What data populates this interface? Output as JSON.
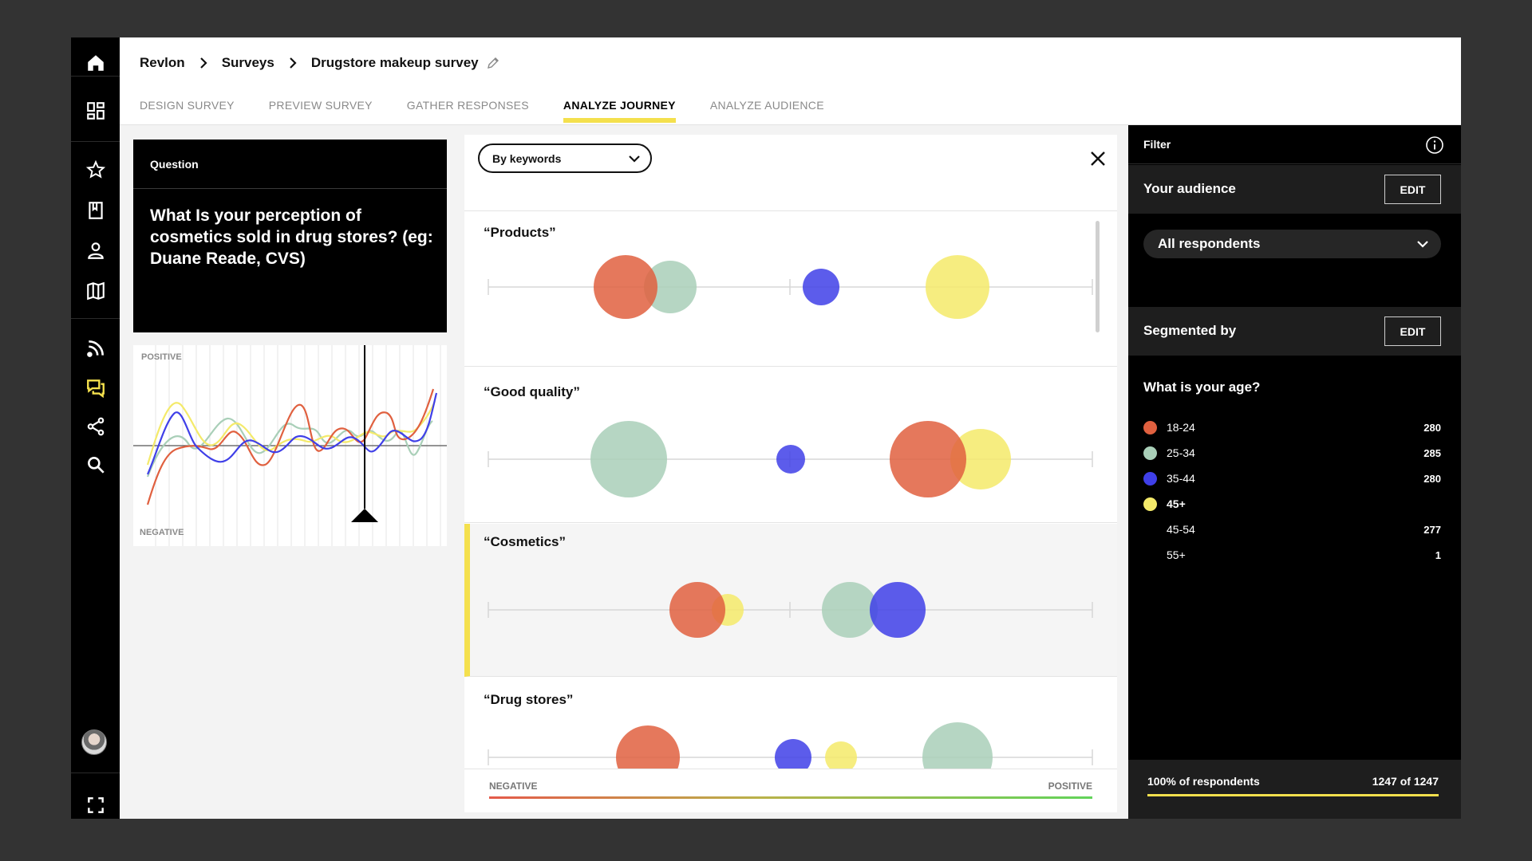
{
  "breadcrumb": {
    "items": [
      "Revlon",
      "Surveys",
      "Drugstore makeup survey"
    ]
  },
  "tabs": [
    "DESIGN SURVEY",
    "PREVIEW SURVEY",
    "GATHER RESPONSES",
    "ANALYZE JOURNEY",
    "ANALYZE AUDIENCE"
  ],
  "active_tab": "ANALYZE JOURNEY",
  "colors": {
    "accent": "#f4e04d",
    "age_18_24": "#e0603f",
    "age_25_34": "#a9cfb8",
    "age_35_44": "#3f3fe8",
    "age_45_plus": "#f4ea6a"
  },
  "question": {
    "label": "Question",
    "text": "What Is your perception of cosmetics sold in drug stores? (eg: Duane Reade, CVS)"
  },
  "wave_chart": {
    "positive_label": "POSITIVE",
    "negative_label": "NEGATIVE"
  },
  "keywords": {
    "mode_select": "By keywords",
    "axis_negative": "NEGATIVE",
    "axis_positive": "POSITIVE",
    "rows": [
      {
        "title": "“Products”"
      },
      {
        "title": "“Good quality”"
      },
      {
        "title": "“Cosmetics”"
      },
      {
        "title": "“Drug stores”"
      }
    ]
  },
  "filter": {
    "title": "Filter",
    "audience_label": "Your audience",
    "edit_label": "EDIT",
    "audience_value": "All respondents",
    "segmented_label": "Segmented by",
    "age_question": "What is your age?",
    "ages": [
      {
        "label": "18-24",
        "count": "280"
      },
      {
        "label": "25-34",
        "count": "285"
      },
      {
        "label": "35-44",
        "count": "280"
      },
      {
        "label": "45+",
        "count": ""
      },
      {
        "label": "45-54",
        "count": "277"
      },
      {
        "label": "55+",
        "count": "1"
      }
    ],
    "footer_pct": "100% of respondents",
    "footer_count": "1247 of 1247"
  }
}
